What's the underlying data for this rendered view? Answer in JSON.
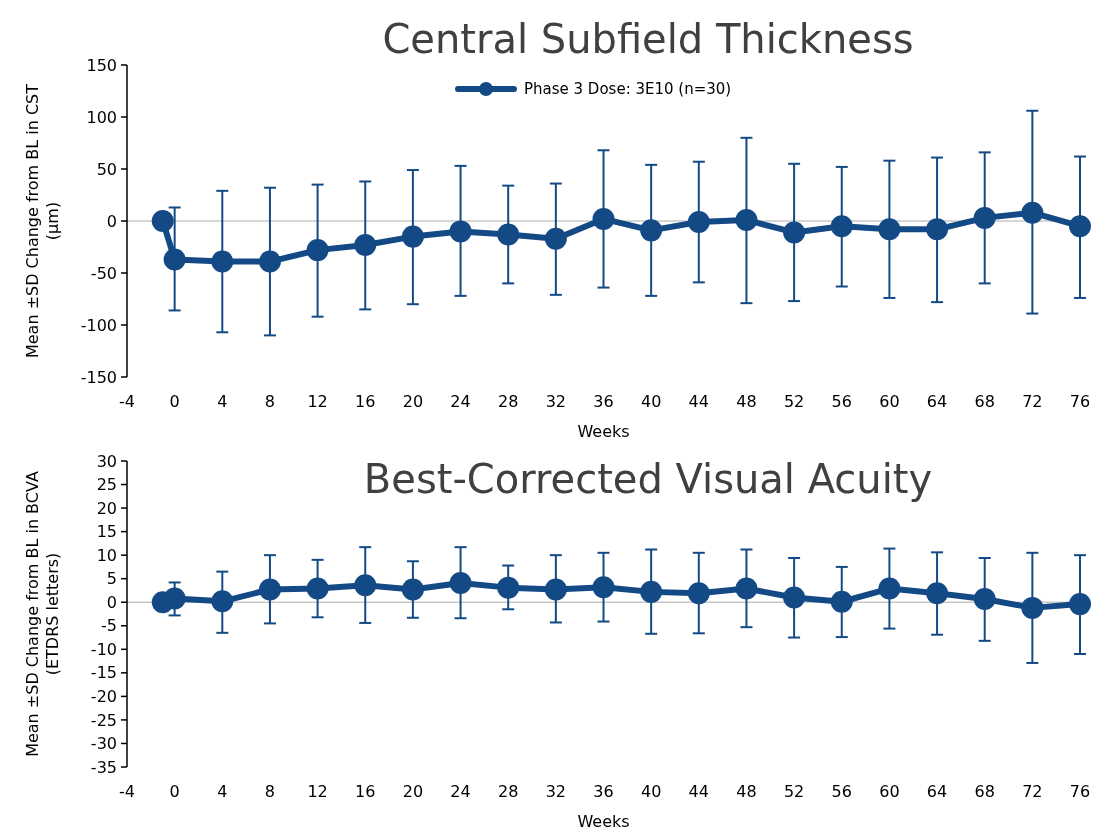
{
  "chart_data": [
    {
      "type": "line",
      "title": "Central Subfield Thickness",
      "xlabel": "Weeks",
      "ylabel": "Mean ±SD Change from BL in CST\n(µm)",
      "x": [
        -1,
        0,
        4,
        8,
        12,
        16,
        20,
        24,
        28,
        32,
        36,
        40,
        44,
        48,
        52,
        56,
        60,
        64,
        68,
        72,
        76
      ],
      "xlim": [
        -4,
        76
      ],
      "xticks": [
        -4,
        0,
        4,
        8,
        12,
        16,
        20,
        24,
        28,
        32,
        36,
        40,
        44,
        48,
        52,
        56,
        60,
        64,
        68,
        72,
        76
      ],
      "ylim": [
        -150,
        150
      ],
      "yticks": [
        -150,
        -100,
        -50,
        0,
        50,
        100,
        150
      ],
      "legend": "top",
      "marker": "circle",
      "line_style": "solid",
      "ref_lines": [
        {
          "axis": "y",
          "value": 0,
          "label": null,
          "color": "#c8c8c8"
        }
      ],
      "series": [
        {
          "name": "Phase 3 Dose: 3E10 (n=30)",
          "color": "#134a86",
          "values": [
            0,
            -37,
            -39,
            -39,
            -28,
            -23,
            -15,
            -10,
            -13,
            -17,
            2,
            -9,
            -1,
            1,
            -11,
            -5,
            -8,
            -8,
            3,
            8,
            -5
          ],
          "errors": [
            null,
            [
              -86,
              13
            ],
            [
              -107,
              29
            ],
            [
              -110,
              32
            ],
            [
              -92,
              35
            ],
            [
              -85,
              38
            ],
            [
              -80,
              49
            ],
            [
              -72,
              53
            ],
            [
              -60,
              34
            ],
            [
              -71,
              36
            ],
            [
              -64,
              68
            ],
            [
              -72,
              54
            ],
            [
              -59,
              57
            ],
            [
              -79,
              80
            ],
            [
              -77,
              55
            ],
            [
              -63,
              52
            ],
            [
              -74,
              58
            ],
            [
              -78,
              61
            ],
            [
              -60,
              66
            ],
            [
              -89,
              106
            ],
            [
              -74,
              62
            ]
          ]
        }
      ]
    },
    {
      "type": "line",
      "title": "Best-Corrected Visual Acuity",
      "xlabel": "Weeks",
      "ylabel": "Mean ±SD Change from BL in BCVA\n(ETDRS letters)",
      "x": [
        -1,
        0,
        4,
        8,
        12,
        16,
        20,
        24,
        28,
        32,
        36,
        40,
        44,
        48,
        52,
        56,
        60,
        64,
        68,
        72,
        76
      ],
      "xlim": [
        -4,
        76
      ],
      "xticks": [
        -4,
        0,
        4,
        8,
        12,
        16,
        20,
        24,
        28,
        32,
        36,
        40,
        44,
        48,
        52,
        56,
        60,
        64,
        68,
        72,
        76
      ],
      "ylim": [
        -35,
        30
      ],
      "yticks": [
        -35,
        -30,
        -25,
        -20,
        -15,
        -10,
        -5,
        0,
        5,
        10,
        15,
        20,
        25,
        30
      ],
      "marker": "circle",
      "line_style": "solid",
      "ref_lines": [
        {
          "axis": "y",
          "value": 0,
          "label": null,
          "color": "#c8c8c8"
        }
      ],
      "series": [
        {
          "color": "#134a86",
          "values": [
            0,
            0.8,
            0.2,
            2.7,
            2.9,
            3.6,
            2.7,
            4.1,
            3.1,
            2.7,
            3.2,
            2.2,
            1.9,
            2.9,
            1,
            0.1,
            2.9,
            1.9,
            0.7,
            -1.2,
            -0.4
          ],
          "errors": [
            null,
            [
              -2.8,
              4.2
            ],
            [
              -6.5,
              6.5
            ],
            [
              -4.5,
              10
            ],
            [
              -3.2,
              9
            ],
            [
              -4.4,
              11.7
            ],
            [
              -3.3,
              8.7
            ],
            [
              -3.4,
              11.7
            ],
            [
              -1.5,
              7.8
            ],
            [
              -4.3,
              10
            ],
            [
              -4.1,
              10.5
            ],
            [
              -6.7,
              11.2
            ],
            [
              -6.6,
              10.5
            ],
            [
              -5.3,
              11.2
            ],
            [
              -7.5,
              9.4
            ],
            [
              -7.4,
              7.5
            ],
            [
              -5.6,
              11.4
            ],
            [
              -6.9,
              10.6
            ],
            [
              -8.2,
              9.4
            ],
            [
              -12.9,
              10.5
            ],
            [
              -11,
              10
            ]
          ]
        }
      ]
    }
  ]
}
